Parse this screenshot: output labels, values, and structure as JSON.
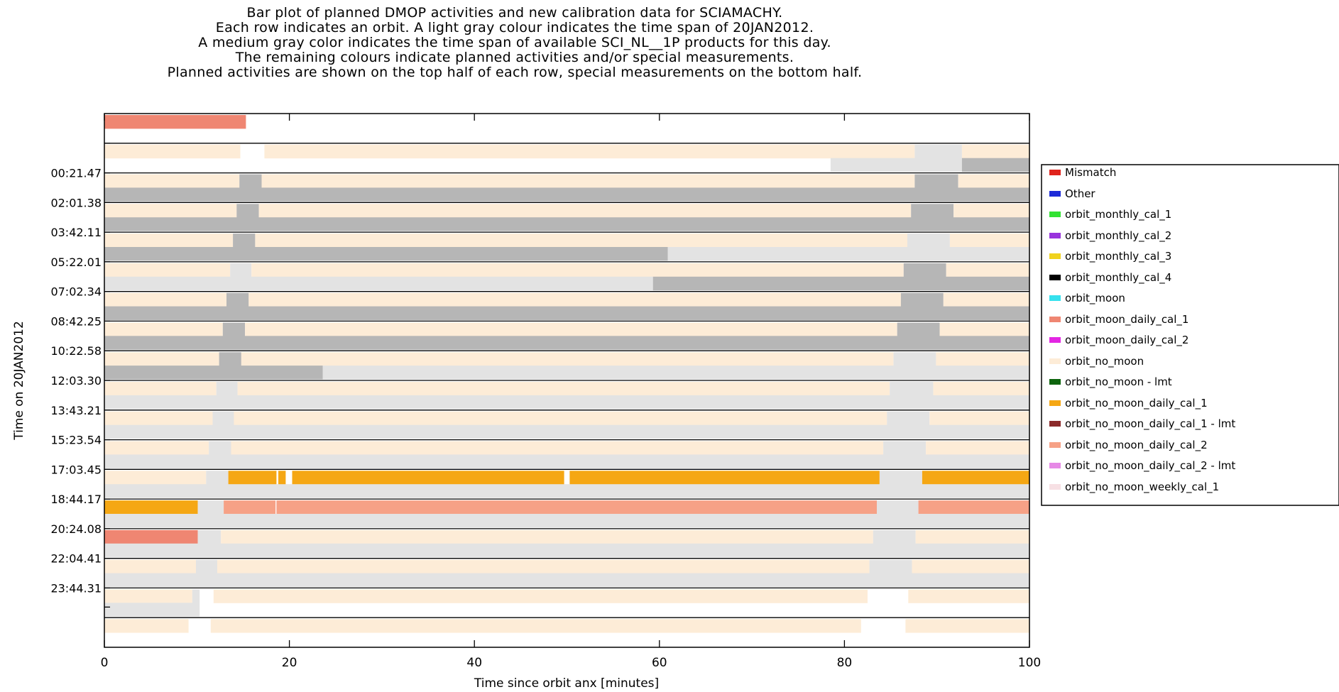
{
  "title_lines": [
    "Bar plot of planned DMOP activities and new calibration data for SCIAMACHY.",
    "Each row indicates an orbit. A light gray colour indicates the time span of 20JAN2012.",
    "A medium gray color indicates the time span of available SCI_NL__1P products for this day.",
    "The remaining colours indicate planned activities and/or special measurements.",
    "Planned activities are shown on the top half of each row, special measurements on the bottom half."
  ],
  "chart_data": {
    "type": "bar",
    "subtype": "horizontal-timeline",
    "xlabel": "Time since orbit anx [minutes]",
    "ylabel": "Time on 20JAN2012",
    "xlim": [
      0,
      100
    ],
    "x_ticks": [
      0,
      20,
      40,
      60,
      80,
      100
    ],
    "y_tick_labels": [
      "00:21.47",
      "02:01.38",
      "03:42.11",
      "05:22.01",
      "07:02.34",
      "08:42.25",
      "10:22.58",
      "12:03.30",
      "13:43.21",
      "15:23.54",
      "17:03.45",
      "18:44.17",
      "20:24.08",
      "22:04.41",
      "23:44.31"
    ],
    "grid": false,
    "legend_position": "right",
    "legend": [
      {
        "name": "Mismatch",
        "color": "#e0231c"
      },
      {
        "name": "Other",
        "color": "#1d2bd8"
      },
      {
        "name": "orbit_monthly_cal_1",
        "color": "#33e233"
      },
      {
        "name": "orbit_monthly_cal_2",
        "color": "#9933dd"
      },
      {
        "name": "orbit_monthly_cal_3",
        "color": "#f0d21e"
      },
      {
        "name": "orbit_monthly_cal_4",
        "color": "#000000"
      },
      {
        "name": "orbit_moon",
        "color": "#36e1ee"
      },
      {
        "name": "orbit_moon_daily_cal_1",
        "color": "#ef8672"
      },
      {
        "name": "orbit_moon_daily_cal_2",
        "color": "#e326e3"
      },
      {
        "name": "orbit_no_moon",
        "color": "#fdecd7"
      },
      {
        "name": "orbit_no_moon - lmt",
        "color": "#0d640d"
      },
      {
        "name": "orbit_no_moon_daily_cal_1",
        "color": "#f5a714"
      },
      {
        "name": "orbit_no_moon_daily_cal_1 - lmt",
        "color": "#8b2a2a"
      },
      {
        "name": "orbit_no_moon_daily_cal_2",
        "color": "#f6a186"
      },
      {
        "name": "orbit_no_moon_daily_cal_2 - lmt",
        "color": "#e689e6"
      },
      {
        "name": "orbit_no_moon_weekly_cal_1",
        "color": "#f7e0e4"
      }
    ],
    "colors": {
      "light_gray": "#e3e3e3",
      "medium_gray": "#b6b6b6"
    },
    "rows": [
      {
        "top": [
          [
            "orbit_moon_daily_cal_1",
            0,
            15.3
          ]
        ],
        "bottom": []
      },
      {
        "top": [
          [
            "orbit_no_moon",
            0,
            14.7
          ],
          [
            "orbit_no_moon",
            17.3,
            87.6
          ],
          [
            "light_gray",
            87.6,
            92.7
          ],
          [
            "orbit_no_moon",
            92.7,
            100
          ]
        ],
        "bottom": [
          [
            "light_gray",
            78.5,
            92.7
          ],
          [
            "medium_gray",
            92.7,
            100
          ]
        ]
      },
      {
        "top": [
          [
            "orbit_no_moon",
            0,
            14.6
          ],
          [
            "medium_gray",
            14.6,
            17.0
          ],
          [
            "orbit_no_moon",
            17.0,
            87.6
          ],
          [
            "medium_gray",
            87.6,
            92.3
          ],
          [
            "orbit_no_moon",
            92.3,
            100
          ]
        ],
        "bottom": [
          [
            "medium_gray",
            0,
            100
          ]
        ]
      },
      {
        "top": [
          [
            "orbit_no_moon",
            0,
            14.3
          ],
          [
            "medium_gray",
            14.3,
            16.7
          ],
          [
            "orbit_no_moon",
            16.7,
            87.2
          ],
          [
            "medium_gray",
            87.2,
            91.8
          ],
          [
            "orbit_no_moon",
            91.8,
            100
          ]
        ],
        "bottom": [
          [
            "medium_gray",
            0,
            100
          ]
        ]
      },
      {
        "top": [
          [
            "orbit_no_moon",
            0,
            13.9
          ],
          [
            "medium_gray",
            13.9,
            16.3
          ],
          [
            "orbit_no_moon",
            16.3,
            86.8
          ],
          [
            "light_gray",
            86.8,
            91.4
          ],
          [
            "orbit_no_moon",
            91.4,
            100
          ]
        ],
        "bottom": [
          [
            "medium_gray",
            0,
            60.9
          ],
          [
            "light_gray",
            60.9,
            100
          ]
        ]
      },
      {
        "top": [
          [
            "orbit_no_moon",
            0,
            13.6
          ],
          [
            "light_gray",
            13.6,
            15.9
          ],
          [
            "orbit_no_moon",
            15.9,
            86.4
          ],
          [
            "medium_gray",
            86.4,
            91.0
          ],
          [
            "orbit_no_moon",
            91.0,
            100
          ]
        ],
        "bottom": [
          [
            "light_gray",
            0,
            59.3
          ],
          [
            "medium_gray",
            59.3,
            100
          ]
        ]
      },
      {
        "top": [
          [
            "orbit_no_moon",
            0,
            13.2
          ],
          [
            "medium_gray",
            13.2,
            15.6
          ],
          [
            "orbit_no_moon",
            15.6,
            86.1
          ],
          [
            "medium_gray",
            86.1,
            90.7
          ],
          [
            "orbit_no_moon",
            90.7,
            100
          ]
        ],
        "bottom": [
          [
            "medium_gray",
            0,
            100
          ]
        ]
      },
      {
        "top": [
          [
            "orbit_no_moon",
            0,
            12.8
          ],
          [
            "medium_gray",
            12.8,
            15.2
          ],
          [
            "orbit_no_moon",
            15.2,
            85.7
          ],
          [
            "medium_gray",
            85.7,
            90.3
          ],
          [
            "orbit_no_moon",
            90.3,
            100
          ]
        ],
        "bottom": [
          [
            "medium_gray",
            0,
            100
          ]
        ]
      },
      {
        "top": [
          [
            "orbit_no_moon",
            0,
            12.4
          ],
          [
            "medium_gray",
            12.4,
            14.8
          ],
          [
            "orbit_no_moon",
            14.8,
            85.3
          ],
          [
            "light_gray",
            85.3,
            89.9
          ],
          [
            "orbit_no_moon",
            89.9,
            100
          ]
        ],
        "bottom": [
          [
            "medium_gray",
            0,
            23.6
          ],
          [
            "light_gray",
            23.6,
            100
          ]
        ]
      },
      {
        "top": [
          [
            "orbit_no_moon",
            0,
            12.1
          ],
          [
            "light_gray",
            12.1,
            14.4
          ],
          [
            "orbit_no_moon",
            14.4,
            84.9
          ],
          [
            "light_gray",
            84.9,
            89.6
          ],
          [
            "orbit_no_moon",
            89.6,
            100
          ]
        ],
        "bottom": [
          [
            "light_gray",
            0,
            100
          ]
        ]
      },
      {
        "top": [
          [
            "orbit_no_moon",
            0,
            11.7
          ],
          [
            "light_gray",
            11.7,
            14.0
          ],
          [
            "orbit_no_moon",
            14.0,
            84.6
          ],
          [
            "light_gray",
            84.6,
            89.2
          ],
          [
            "orbit_no_moon",
            89.2,
            100
          ]
        ],
        "bottom": [
          [
            "light_gray",
            0,
            100
          ]
        ]
      },
      {
        "top": [
          [
            "orbit_no_moon",
            0,
            11.3
          ],
          [
            "light_gray",
            11.3,
            13.7
          ],
          [
            "orbit_no_moon",
            13.7,
            84.2
          ],
          [
            "light_gray",
            84.2,
            88.8
          ],
          [
            "orbit_no_moon",
            88.8,
            100
          ]
        ],
        "bottom": [
          [
            "light_gray",
            0,
            100
          ]
        ]
      },
      {
        "top": [
          [
            "orbit_no_moon",
            0,
            11.0
          ],
          [
            "light_gray",
            11.0,
            13.4
          ],
          [
            "orbit_no_moon_daily_cal_1",
            13.4,
            18.6
          ],
          [
            "orbit_no_moon_daily_cal_1",
            18.8,
            19.6
          ],
          [
            "orbit_no_moon_daily_cal_1",
            20.3,
            49.7
          ],
          [
            "orbit_no_moon_daily_cal_1",
            50.3,
            83.8
          ],
          [
            "light_gray",
            83.8,
            88.4
          ],
          [
            "orbit_no_moon_daily_cal_1",
            88.4,
            100
          ]
        ],
        "bottom": [
          [
            "light_gray",
            0,
            100
          ]
        ]
      },
      {
        "top": [
          [
            "orbit_no_moon_daily_cal_1",
            0,
            10.1
          ],
          [
            "light_gray",
            10.1,
            12.9
          ],
          [
            "orbit_no_moon_daily_cal_2",
            12.9,
            18.5
          ],
          [
            "orbit_no_moon_daily_cal_2",
            18.6,
            83.5
          ],
          [
            "light_gray",
            83.5,
            88.0
          ],
          [
            "orbit_no_moon_daily_cal_2",
            88.0,
            100
          ]
        ],
        "bottom": [
          [
            "light_gray",
            0,
            100
          ]
        ]
      },
      {
        "top": [
          [
            "orbit_moon_daily_cal_1",
            0,
            10.1
          ],
          [
            "light_gray",
            10.1,
            12.6
          ],
          [
            "orbit_no_moon",
            12.6,
            83.1
          ],
          [
            "light_gray",
            83.1,
            87.7
          ],
          [
            "orbit_no_moon",
            87.7,
            100
          ]
        ],
        "bottom": [
          [
            "light_gray",
            0,
            100
          ]
        ]
      },
      {
        "top": [
          [
            "orbit_no_moon",
            0,
            9.9
          ],
          [
            "light_gray",
            9.9,
            12.2
          ],
          [
            "orbit_no_moon",
            12.2,
            82.7
          ],
          [
            "light_gray",
            82.7,
            87.3
          ],
          [
            "orbit_no_moon",
            87.3,
            100
          ]
        ],
        "bottom": [
          [
            "light_gray",
            0,
            100
          ]
        ]
      },
      {
        "top": [
          [
            "orbit_no_moon",
            0,
            9.5
          ],
          [
            "light_gray",
            9.5,
            10.3
          ],
          [
            "orbit_no_moon",
            11.8,
            82.5
          ],
          [
            "orbit_no_moon",
            86.9,
            100
          ]
        ],
        "bottom": [
          [
            "light_gray",
            0,
            10.3
          ]
        ]
      },
      {
        "top": [
          [
            "orbit_no_moon",
            0,
            9.1
          ],
          [
            "orbit_no_moon",
            11.5,
            81.8
          ],
          [
            "orbit_no_moon",
            86.6,
            100
          ]
        ],
        "bottom": []
      }
    ]
  }
}
